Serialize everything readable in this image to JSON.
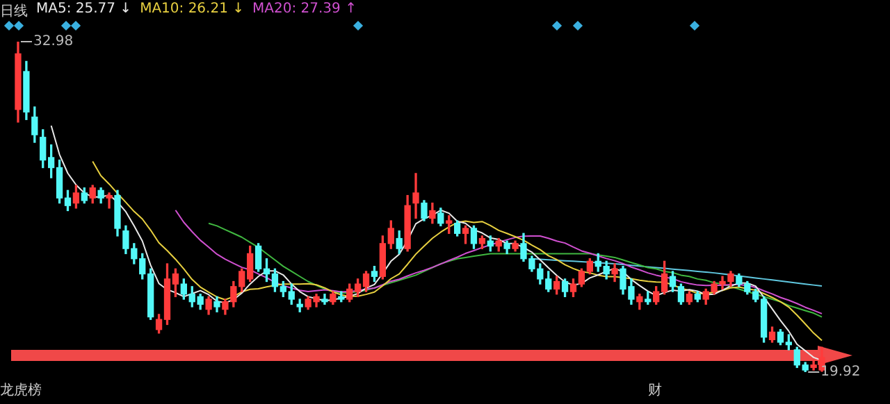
{
  "chart_data": {
    "type": "candlestick",
    "categories": [
      null,
      null,
      null,
      null,
      null,
      null,
      null,
      null,
      null,
      null,
      null,
      null,
      null,
      null,
      null,
      null,
      null,
      null,
      null,
      null,
      null,
      null,
      null,
      null,
      null,
      null,
      null,
      null,
      null,
      null,
      null,
      null,
      null,
      null,
      null,
      null,
      null,
      null,
      null,
      null,
      null,
      null,
      null,
      null,
      null,
      null,
      null,
      null,
      null,
      null,
      null,
      null,
      null,
      null,
      null,
      null,
      null,
      null,
      null,
      null,
      null,
      null,
      null,
      null,
      null,
      null,
      null,
      null,
      null,
      null,
      null,
      null,
      null,
      null,
      null,
      null,
      null,
      null,
      null,
      null,
      null,
      null,
      null,
      null,
      null,
      null,
      null,
      null,
      null,
      null,
      null,
      null,
      null,
      null,
      null,
      null,
      null,
      null
    ],
    "ohlc": [
      [
        30.3,
        32.98,
        29.8,
        32.5
      ],
      [
        31.8,
        32.2,
        29.9,
        30.2
      ],
      [
        30.0,
        30.4,
        29.0,
        29.3
      ],
      [
        29.2,
        29.5,
        28.0,
        28.3
      ],
      [
        28.4,
        28.9,
        27.6,
        28.0
      ],
      [
        28.0,
        28.3,
        26.6,
        26.8
      ],
      [
        26.8,
        27.1,
        26.3,
        26.5
      ],
      [
        26.6,
        27.3,
        26.4,
        27.0
      ],
      [
        27.0,
        27.2,
        26.6,
        26.7
      ],
      [
        26.8,
        27.3,
        26.6,
        27.2
      ],
      [
        27.1,
        27.2,
        26.6,
        26.8
      ],
      [
        26.8,
        27.0,
        26.4,
        26.9
      ],
      [
        26.9,
        27.1,
        25.3,
        25.6
      ],
      [
        25.5,
        25.7,
        24.6,
        24.8
      ],
      [
        24.8,
        25.0,
        24.2,
        24.4
      ],
      [
        24.4,
        24.6,
        23.6,
        23.8
      ],
      [
        23.8,
        24.0,
        22.0,
        22.1
      ],
      [
        21.6,
        22.2,
        21.46,
        22.0
      ],
      [
        22.0,
        24.2,
        21.8,
        23.6
      ],
      [
        23.4,
        24.0,
        22.9,
        23.8
      ],
      [
        23.4,
        23.6,
        22.8,
        23.0
      ],
      [
        23.0,
        23.3,
        22.5,
        22.7
      ],
      [
        22.9,
        23.0,
        22.4,
        22.6
      ],
      [
        22.4,
        22.9,
        22.2,
        22.8
      ],
      [
        22.7,
        22.9,
        22.3,
        22.5
      ],
      [
        22.4,
        22.8,
        22.2,
        22.7
      ],
      [
        22.7,
        23.5,
        22.5,
        23.3
      ],
      [
        23.3,
        24.0,
        23.1,
        23.9
      ],
      [
        23.6,
        24.9,
        23.5,
        24.6
      ],
      [
        24.9,
        25.0,
        23.9,
        24.0
      ],
      [
        24.0,
        24.4,
        23.5,
        23.8
      ],
      [
        23.8,
        24.0,
        23.1,
        23.3
      ],
      [
        23.3,
        23.5,
        22.9,
        23.1
      ],
      [
        23.1,
        23.4,
        22.6,
        22.8
      ],
      [
        22.6,
        22.8,
        22.3,
        22.5
      ],
      [
        22.5,
        22.9,
        22.4,
        22.8
      ],
      [
        22.7,
        23.0,
        22.5,
        22.9
      ],
      [
        22.8,
        23.0,
        22.6,
        22.7
      ],
      [
        22.7,
        23.1,
        22.6,
        23.0
      ],
      [
        22.9,
        23.1,
        22.7,
        22.8
      ],
      [
        22.8,
        23.4,
        22.7,
        23.2
      ],
      [
        23.1,
        23.6,
        22.9,
        23.4
      ],
      [
        23.3,
        23.9,
        23.1,
        23.8
      ],
      [
        23.9,
        24.1,
        23.5,
        23.7
      ],
      [
        23.7,
        25.3,
        23.6,
        25.0
      ],
      [
        25.0,
        25.9,
        24.8,
        25.6
      ],
      [
        25.2,
        25.5,
        24.6,
        24.8
      ],
      [
        24.8,
        26.9,
        24.7,
        26.5
      ],
      [
        26.6,
        27.77,
        26.0,
        27.0
      ],
      [
        26.6,
        26.7,
        25.9,
        26.0
      ],
      [
        26.0,
        26.6,
        25.8,
        26.3
      ],
      [
        26.2,
        26.4,
        25.7,
        25.8
      ],
      [
        25.8,
        26.1,
        25.4,
        25.9
      ],
      [
        25.8,
        25.9,
        25.3,
        25.4
      ],
      [
        25.4,
        25.7,
        25.0,
        25.6
      ],
      [
        25.6,
        25.7,
        24.8,
        25.0
      ],
      [
        25.0,
        25.3,
        24.8,
        25.2
      ],
      [
        25.1,
        25.3,
        24.7,
        24.9
      ],
      [
        24.9,
        25.2,
        24.7,
        25.1
      ],
      [
        25.0,
        25.1,
        24.6,
        24.8
      ],
      [
        24.8,
        25.1,
        24.7,
        25.0
      ],
      [
        25.0,
        25.4,
        24.3,
        24.4
      ],
      [
        24.4,
        24.5,
        23.9,
        24.0
      ],
      [
        24.0,
        24.2,
        23.4,
        23.6
      ],
      [
        23.6,
        23.9,
        23.1,
        23.2
      ],
      [
        23.2,
        23.7,
        23.0,
        23.5
      ],
      [
        23.5,
        23.6,
        22.9,
        23.1
      ],
      [
        23.1,
        23.6,
        22.9,
        23.4
      ],
      [
        23.4,
        24.0,
        23.3,
        23.9
      ],
      [
        23.9,
        24.4,
        23.8,
        24.3
      ],
      [
        24.3,
        24.6,
        23.9,
        24.1
      ],
      [
        24.1,
        24.3,
        23.6,
        23.8
      ],
      [
        23.8,
        24.2,
        23.5,
        24.0
      ],
      [
        24.0,
        24.1,
        23.0,
        23.2
      ],
      [
        23.3,
        23.6,
        22.6,
        22.8
      ],
      [
        22.7,
        23.0,
        22.4,
        22.9
      ],
      [
        22.8,
        23.1,
        22.6,
        22.7
      ],
      [
        22.7,
        23.3,
        22.6,
        23.1
      ],
      [
        23.1,
        24.3,
        23.0,
        23.8
      ],
      [
        23.7,
        23.9,
        23.1,
        23.3
      ],
      [
        23.3,
        23.4,
        22.6,
        22.7
      ],
      [
        22.7,
        23.1,
        22.6,
        23.0
      ],
      [
        23.0,
        23.1,
        22.7,
        22.8
      ],
      [
        22.8,
        23.2,
        22.6,
        23.1
      ],
      [
        23.1,
        23.5,
        23.0,
        23.4
      ],
      [
        23.4,
        23.7,
        23.2,
        23.5
      ],
      [
        23.5,
        23.9,
        23.3,
        23.8
      ],
      [
        23.7,
        23.8,
        23.3,
        23.4
      ],
      [
        23.4,
        23.5,
        23.0,
        23.1
      ],
      [
        23.1,
        23.2,
        22.7,
        22.8
      ],
      [
        22.8,
        22.9,
        21.1,
        21.3
      ],
      [
        21.2,
        21.7,
        21.1,
        21.5
      ],
      [
        21.5,
        21.6,
        21.0,
        21.1
      ],
      [
        21.1,
        21.4,
        20.8,
        21.0
      ],
      [
        20.8,
        20.9,
        20.1,
        20.2
      ],
      [
        20.2,
        20.3,
        19.92,
        20.0
      ],
      [
        20.1,
        20.4,
        20.0,
        20.2
      ],
      [
        20.0,
        20.9,
        19.95,
        20.5
      ]
    ],
    "colors": [
      "#ff3b3b",
      "#54f8f8",
      "#54f8f8",
      "#54f8f8",
      "#54f8f8",
      "#54f8f8",
      "#54f8f8",
      "#ff3b3b",
      "#54f8f8",
      "#ff3b3b",
      "#54f8f8",
      "#ff3b3b",
      "#54f8f8",
      "#54f8f8",
      "#54f8f8",
      "#54f8f8",
      "#54f8f8",
      "#ff3b3b",
      "#ff3b3b",
      "#ff3b3b",
      "#54f8f8",
      "#54f8f8",
      "#54f8f8",
      "#ff3b3b",
      "#54f8f8",
      "#ff3b3b",
      "#ff3b3b",
      "#ff3b3b",
      "#ff3b3b",
      "#54f8f8",
      "#54f8f8",
      "#54f8f8",
      "#54f8f8",
      "#54f8f8",
      "#54f8f8",
      "#ff3b3b",
      "#ff3b3b",
      "#54f8f8",
      "#ff3b3b",
      "#54f8f8",
      "#ff3b3b",
      "#ff3b3b",
      "#ff3b3b",
      "#54f8f8",
      "#ff3b3b",
      "#ff3b3b",
      "#54f8f8",
      "#ff3b3b",
      "#ff3b3b",
      "#54f8f8",
      "#ff3b3b",
      "#54f8f8",
      "#ff3b3b",
      "#54f8f8",
      "#ff3b3b",
      "#54f8f8",
      "#ff3b3b",
      "#54f8f8",
      "#ff3b3b",
      "#54f8f8",
      "#ff3b3b",
      "#54f8f8",
      "#54f8f8",
      "#54f8f8",
      "#54f8f8",
      "#ff3b3b",
      "#54f8f8",
      "#ff3b3b",
      "#ff3b3b",
      "#ff3b3b",
      "#54f8f8",
      "#54f8f8",
      "#ff3b3b",
      "#54f8f8",
      "#54f8f8",
      "#ff3b3b",
      "#54f8f8",
      "#ff3b3b",
      "#ff3b3b",
      "#54f8f8",
      "#54f8f8",
      "#ff3b3b",
      "#54f8f8",
      "#ff3b3b",
      "#ff3b3b",
      "#ff3b3b",
      "#ff3b3b",
      "#54f8f8",
      "#54f8f8",
      "#54f8f8",
      "#54f8f8",
      "#ff3b3b",
      "#54f8f8",
      "#54f8f8",
      "#54f8f8",
      "#54f8f8",
      "#ff3b3b",
      "#ff3b3b"
    ],
    "series": [
      {
        "type": "line",
        "name": "MA5: 25.77 ↓",
        "color": "#e8e8e8",
        "values": [
          null,
          null,
          null,
          null,
          29.66,
          28.52,
          27.78,
          27.32,
          27.0,
          26.84,
          26.84,
          26.92,
          26.64,
          26.26,
          25.7,
          25.1,
          24.14,
          23.42,
          23.18,
          23.06,
          22.9,
          23.02,
          23.14,
          22.98,
          22.72,
          22.66,
          22.78,
          23.04,
          23.4,
          23.7,
          23.92,
          23.92,
          23.76,
          23.4,
          23.1,
          22.9,
          22.82,
          22.74,
          22.78,
          22.84,
          22.92,
          23.02,
          23.24,
          23.38,
          23.82,
          24.3,
          24.58,
          25.12,
          25.78,
          25.98,
          26.12,
          26.32,
          26.2,
          25.88,
          25.8,
          25.54,
          25.42,
          25.22,
          25.16,
          25.0,
          25.0,
          24.84,
          24.66,
          24.36,
          24.04,
          23.74,
          23.48,
          23.36,
          23.42,
          23.64,
          23.76,
          23.9,
          24.02,
          23.88,
          23.58,
          23.34,
          23.12,
          22.94,
          23.06,
          23.16,
          23.12,
          23.18,
          23.12,
          22.98,
          23.0,
          23.16,
          23.32,
          23.44,
          23.44,
          23.32,
          22.88,
          22.42,
          21.96,
          21.54,
          21.02,
          20.76,
          20.5,
          20.38
        ]
      },
      {
        "type": "line",
        "name": "MA10: 26.21 ↓",
        "color": "#e8d040",
        "values": [
          null,
          null,
          null,
          null,
          null,
          null,
          null,
          null,
          null,
          28.25,
          27.68,
          27.35,
          26.98,
          26.63,
          26.27,
          25.97,
          25.53,
          25.03,
          24.72,
          24.38,
          24.0,
          23.58,
          23.28,
          23.08,
          22.89,
          22.78,
          22.9,
          23.09,
          23.19,
          23.21,
          23.29,
          23.35,
          23.4,
          23.4,
          23.4,
          23.41,
          23.37,
          23.25,
          23.09,
          22.97,
          22.91,
          22.92,
          22.99,
          23.08,
          23.33,
          23.61,
          23.8,
          24.18,
          24.58,
          24.9,
          25.21,
          25.45,
          25.66,
          25.83,
          25.89,
          25.83,
          25.87,
          25.71,
          25.52,
          25.4,
          25.27,
          25.13,
          24.94,
          24.76,
          24.52,
          24.37,
          24.16,
          24.01,
          23.89,
          23.84,
          23.75,
          23.69,
          23.69,
          23.65,
          23.61,
          23.55,
          23.51,
          23.48,
          23.47,
          23.37,
          23.23,
          23.15,
          23.03,
          23.02,
          23.08,
          23.14,
          23.25,
          23.28,
          23.21,
          23.16,
          23.02,
          22.87,
          22.7,
          22.49,
          22.17,
          21.82,
          21.46,
          21.17
        ]
      },
      {
        "type": "line",
        "name": "MA20: 27.39 ↑",
        "color": "#d050d0",
        "values": [
          null,
          null,
          null,
          null,
          null,
          null,
          null,
          null,
          null,
          null,
          null,
          null,
          null,
          null,
          null,
          null,
          null,
          null,
          null,
          26.32,
          25.84,
          25.47,
          25.13,
          24.86,
          24.58,
          24.38,
          24.22,
          24.06,
          23.96,
          23.8,
          23.65,
          23.47,
          23.34,
          23.24,
          23.15,
          23.1,
          23.14,
          23.17,
          23.14,
          23.09,
          23.1,
          23.14,
          23.2,
          23.24,
          23.37,
          23.51,
          23.59,
          23.72,
          23.84,
          23.94,
          24.06,
          24.19,
          24.33,
          24.46,
          24.61,
          24.72,
          24.84,
          24.95,
          25.05,
          25.15,
          25.24,
          25.29,
          25.3,
          25.3,
          25.21,
          25.1,
          25.02,
          24.86,
          24.71,
          24.62,
          24.51,
          24.41,
          24.32,
          24.21,
          24.07,
          23.96,
          23.84,
          23.75,
          23.68,
          23.61,
          23.49,
          23.42,
          23.36,
          23.34,
          23.35,
          23.35,
          23.38,
          23.38,
          23.34,
          23.27,
          23.13,
          23.01,
          22.87,
          22.76,
          22.63,
          22.48,
          22.36,
          22.23
        ]
      },
      {
        "type": "line",
        "color": "#40b840",
        "values": [
          null,
          null,
          null,
          null,
          null,
          null,
          null,
          null,
          null,
          null,
          null,
          null,
          null,
          null,
          null,
          null,
          null,
          null,
          null,
          null,
          null,
          null,
          null,
          25.8,
          25.7,
          25.55,
          25.4,
          25.25,
          25.05,
          24.85,
          24.6,
          24.35,
          24.1,
          23.9,
          23.7,
          23.5,
          23.35,
          23.2,
          23.1,
          23.05,
          23.05,
          23.1,
          23.15,
          23.25,
          23.35,
          23.45,
          23.55,
          23.65,
          23.75,
          23.9,
          24.05,
          24.2,
          24.3,
          24.4,
          24.45,
          24.5,
          24.55,
          24.6,
          24.6,
          24.6,
          24.6,
          24.6,
          24.6,
          24.6,
          24.6,
          24.6,
          24.6,
          24.6,
          24.6,
          24.6,
          24.55,
          24.5,
          24.45,
          24.35,
          24.25,
          24.15,
          24.05,
          24.0,
          23.9,
          23.85,
          23.75,
          23.7,
          23.6,
          23.55,
          23.45,
          23.4,
          23.3,
          23.2,
          23.1,
          23.0,
          22.9,
          22.8,
          22.7,
          22.55,
          22.45,
          22.35,
          22.25,
          22.1
        ]
      },
      {
        "type": "line",
        "color": "#60c8e0",
        "values": [
          null,
          null,
          null,
          null,
          null,
          null,
          null,
          null,
          null,
          null,
          null,
          null,
          null,
          null,
          null,
          null,
          null,
          null,
          null,
          null,
          null,
          null,
          null,
          null,
          null,
          null,
          null,
          null,
          null,
          null,
          null,
          null,
          null,
          null,
          null,
          null,
          null,
          null,
          null,
          null,
          null,
          null,
          null,
          null,
          null,
          null,
          null,
          null,
          null,
          null,
          null,
          null,
          null,
          null,
          null,
          null,
          null,
          null,
          null,
          null,
          null,
          null,
          24.4,
          24.38,
          24.36,
          24.34,
          24.32,
          24.3,
          24.28,
          24.26,
          24.24,
          24.22,
          24.2,
          24.17,
          24.14,
          24.11,
          24.08,
          24.05,
          24.02,
          23.99,
          23.96,
          23.93,
          23.9,
          23.87,
          23.84,
          23.8,
          23.76,
          23.72,
          23.68,
          23.64,
          23.6,
          23.56,
          23.52,
          23.48,
          23.44,
          23.4,
          23.36,
          23.32
        ]
      }
    ],
    "annotations": [
      "日线",
      "龙虎榜",
      "财",
      "32.98",
      "19.92"
    ],
    "legend": "top left"
  }
}
